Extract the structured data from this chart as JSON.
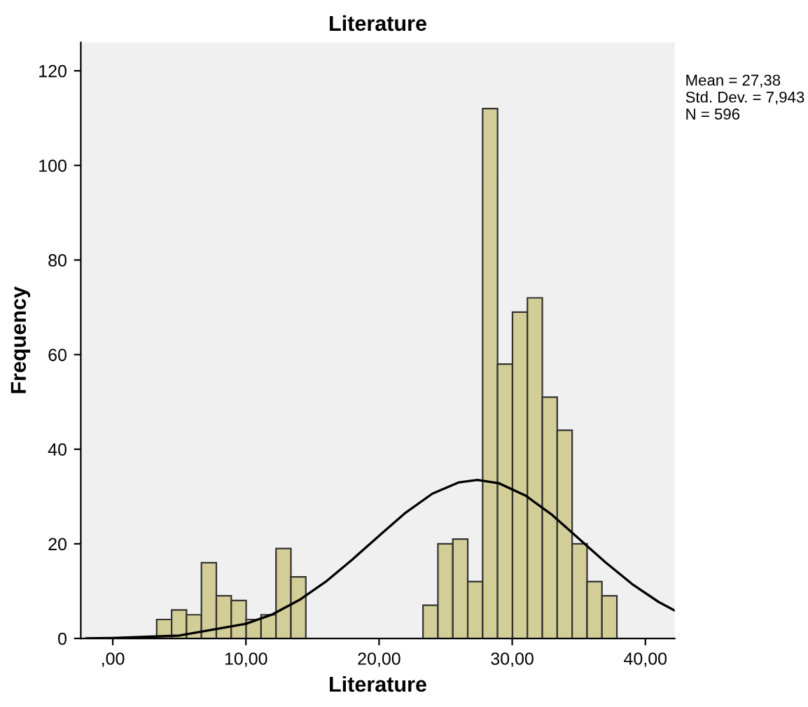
{
  "chart_data": {
    "type": "histogram",
    "title": "Literature",
    "xlabel": "Literature",
    "ylabel": "Frequency",
    "bins": [
      3.3,
      4.42,
      5.54,
      6.66,
      7.78,
      8.9,
      10.02,
      11.14,
      12.26,
      13.38,
      14.5,
      23.3,
      24.42,
      25.54,
      26.66,
      27.78,
      28.9,
      30.02,
      31.14,
      32.26,
      33.38,
      34.5,
      35.62,
      36.74,
      37.86
    ],
    "values": [
      4,
      6,
      5,
      16,
      9,
      8,
      4,
      5,
      19,
      13,
      0,
      7,
      20,
      21,
      12,
      112,
      58,
      69,
      72,
      51,
      44,
      20,
      12,
      9
    ],
    "color": "#d3ce97",
    "series": [
      {
        "type": "line",
        "color": "#000000",
        "x": [
          -2,
          0,
          5,
          10,
          12,
          14,
          16,
          18,
          20,
          22,
          24,
          26,
          27.38,
          29,
          31,
          33,
          35,
          37,
          39,
          41,
          42.2
        ],
        "values": [
          0,
          0.1,
          0.6,
          3.1,
          5.1,
          8.1,
          12.0,
          16.7,
          21.7,
          26.6,
          30.6,
          33.0,
          33.5,
          32.8,
          30.2,
          26.1,
          21.1,
          16.1,
          11.5,
          7.7,
          5.9
        ]
      }
    ],
    "xlim": [
      -2.4,
      42.2
    ],
    "ylim": [
      0,
      126
    ],
    "xticks": [
      {
        "value": 0,
        "label": ",00"
      },
      {
        "value": 10,
        "label": "10,00"
      },
      {
        "value": 20,
        "label": "20,00"
      },
      {
        "value": 30,
        "label": "30,00"
      },
      {
        "value": 40,
        "label": "40,00"
      }
    ],
    "yticks": [
      0,
      20,
      40,
      60,
      80,
      100,
      120
    ],
    "grid": false,
    "legend": false,
    "annotations": [
      "Mean = 27,38",
      "Std. Dev. = 7,943",
      "N = 596"
    ]
  }
}
